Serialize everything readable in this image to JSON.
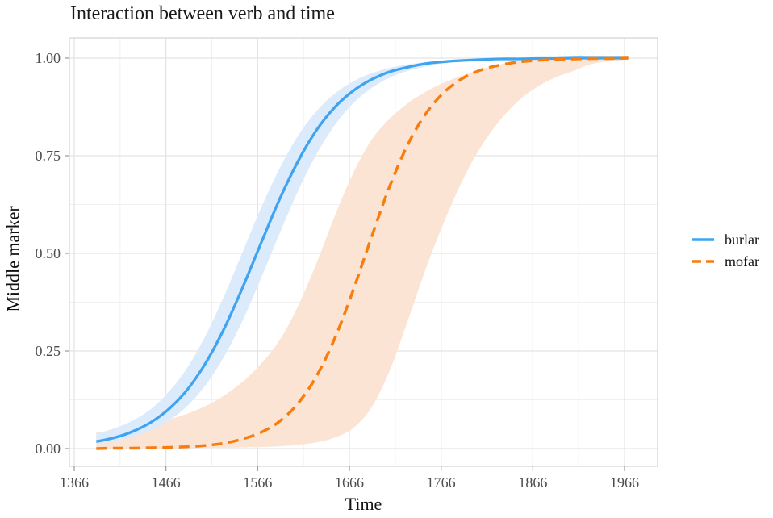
{
  "title": "Interaction between verb and time",
  "axes": {
    "x_label": "Time",
    "y_label": "Middle marker"
  },
  "legend": {
    "position": "right",
    "items": [
      {
        "label": "burlar",
        "line_style": "solid",
        "color": "#3FA3F0"
      },
      {
        "label": "mofar",
        "line_style": "dashed",
        "color": "#F87D0E"
      }
    ]
  },
  "colors": {
    "burlar_line": "#3FA3F0",
    "burlar_band": "#DCEBFB",
    "mofar_line": "#F87D0E",
    "mofar_band": "#FBE4D3",
    "grid_major": "#E3E3E3",
    "grid_minor": "#F1F1F1",
    "panel_border": "#D6D6D6",
    "tick_mark": "#999999",
    "tick_label": "#4D4D4D",
    "text": "#1A1A1A",
    "background": "#FFFFFF"
  },
  "chart_data": {
    "type": "line",
    "title": "Interaction between verb and time",
    "xlabel": "Time",
    "ylabel": "Middle marker",
    "legend_position": "right",
    "grid": "major+minor",
    "x_ticks": [
      1366,
      1466,
      1566,
      1666,
      1766,
      1866,
      1966
    ],
    "x_minor_ticks": [
      1416,
      1516,
      1616,
      1716,
      1816,
      1916
    ],
    "y_ticks": [
      0.0,
      0.25,
      0.5,
      0.75,
      1.0
    ],
    "y_tick_labels": [
      "0.00",
      "0.25",
      "0.50",
      "0.75",
      "1.00"
    ],
    "y_minor_ticks": [
      0.125,
      0.375,
      0.625,
      0.875
    ],
    "xlim": [
      1361,
      2002
    ],
    "ylim": [
      -0.05,
      1.05
    ],
    "x": [
      1390,
      1410,
      1430,
      1450,
      1470,
      1490,
      1510,
      1530,
      1550,
      1570,
      1590,
      1610,
      1630,
      1650,
      1670,
      1690,
      1710,
      1730,
      1750,
      1770,
      1790,
      1810,
      1830,
      1850,
      1870,
      1890,
      1910,
      1930,
      1950,
      1970
    ],
    "series": [
      {
        "name": "burlar",
        "line": "solid",
        "color": "#3FA3F0",
        "band_color": "#DCEBFB",
        "midpoint_time": 1565,
        "values": [
          0.018,
          0.028,
          0.044,
          0.068,
          0.103,
          0.153,
          0.222,
          0.31,
          0.415,
          0.528,
          0.639,
          0.736,
          0.815,
          0.874,
          0.916,
          0.945,
          0.965,
          0.977,
          0.986,
          0.991,
          0.994,
          0.996,
          0.998,
          0.998,
          0.999,
          0.999,
          1.0,
          1.0,
          1.0,
          1.0
        ],
        "ci_upper": [
          0.038,
          0.052,
          0.072,
          0.102,
          0.148,
          0.21,
          0.293,
          0.394,
          0.506,
          0.618,
          0.718,
          0.801,
          0.864,
          0.909,
          0.94,
          0.961,
          0.975,
          0.984,
          0.99,
          0.993,
          0.996,
          0.997,
          0.998,
          0.999,
          0.999,
          1.0,
          1.0,
          1.0,
          1.0,
          1.0
        ],
        "ci_lower": [
          0.012,
          0.019,
          0.03,
          0.047,
          0.073,
          0.111,
          0.165,
          0.238,
          0.33,
          0.438,
          0.551,
          0.66,
          0.753,
          0.828,
          0.884,
          0.923,
          0.95,
          0.968,
          0.979,
          0.987,
          0.992,
          0.995,
          0.997,
          0.998,
          0.999,
          0.999,
          0.999,
          1.0,
          1.0,
          1.0
        ]
      },
      {
        "name": "mofar",
        "line": "dashed",
        "color": "#F87D0E",
        "band_color": "#FBE4D3",
        "midpoint_time": 1684,
        "values": [
          0.0,
          0.001,
          0.001,
          0.002,
          0.003,
          0.005,
          0.008,
          0.014,
          0.025,
          0.042,
          0.07,
          0.116,
          0.185,
          0.282,
          0.405,
          0.541,
          0.672,
          0.78,
          0.86,
          0.914,
          0.949,
          0.97,
          0.982,
          0.99,
          0.994,
          0.997,
          0.998,
          0.999,
          0.999,
          1.0
        ],
        "ci_upper": [
          0.042,
          0.047,
          0.054,
          0.063,
          0.075,
          0.09,
          0.11,
          0.137,
          0.172,
          0.218,
          0.278,
          0.365,
          0.474,
          0.595,
          0.705,
          0.79,
          0.845,
          0.885,
          0.915,
          0.938,
          0.956,
          0.972,
          0.984,
          0.992,
          0.995,
          0.997,
          0.998,
          0.999,
          0.999,
          1.0
        ],
        "ci_lower": [
          0.0,
          0.0,
          0.0,
          0.001,
          0.001,
          0.001,
          0.002,
          0.002,
          0.003,
          0.004,
          0.006,
          0.01,
          0.016,
          0.028,
          0.052,
          0.105,
          0.2,
          0.33,
          0.465,
          0.585,
          0.69,
          0.775,
          0.84,
          0.89,
          0.925,
          0.95,
          0.967,
          0.985,
          0.992,
          0.996
        ]
      }
    ]
  }
}
